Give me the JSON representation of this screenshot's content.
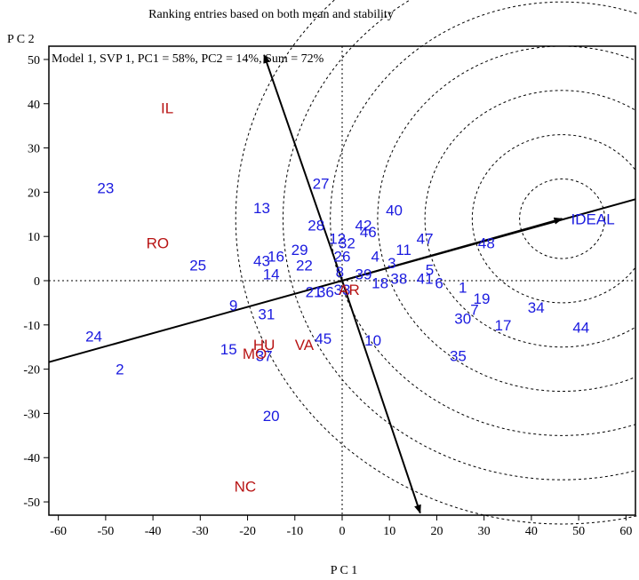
{
  "chart_data": {
    "type": "scatter",
    "title": "Ranking entries based on both mean and stability",
    "subtitle": "Model 1, SVP 1, PC1 = 58%, PC2 = 14%, Sum = 72%",
    "xlabel": "P C 1",
    "ylabel": "P C 2",
    "xlim": [
      -62,
      62
    ],
    "ylim": [
      -53,
      53
    ],
    "xticks": [
      -60,
      -50,
      -40,
      -30,
      -20,
      -10,
      0,
      10,
      20,
      30,
      40,
      50,
      60
    ],
    "yticks": [
      -50,
      -40,
      -30,
      -20,
      -10,
      0,
      10,
      20,
      30,
      40,
      50
    ],
    "grid": false,
    "colors": {
      "entry": "#1a1adf",
      "environment": "#b81414",
      "axis": "#000000",
      "ideal_arrow": "#000000"
    },
    "series": [
      {
        "name": "",
        "points": [
          {
            "label": "1",
            "x": 25.5,
            "y": -1.5
          },
          {
            "label": "2",
            "x": -47,
            "y": -20
          },
          {
            "label": "3",
            "x": 10.5,
            "y": 4
          },
          {
            "label": "4",
            "x": 7,
            "y": 5.5
          },
          {
            "label": "5",
            "x": 18.5,
            "y": 2.5
          },
          {
            "label": "6",
            "x": 20.5,
            "y": -0.5
          },
          {
            "label": "7",
            "x": 28,
            "y": -6.5
          },
          {
            "label": "8",
            "x": -0.5,
            "y": 2
          },
          {
            "label": "9",
            "x": -23,
            "y": -5.5
          },
          {
            "label": "10",
            "x": 6.5,
            "y": -13.5
          },
          {
            "label": "11",
            "x": 13,
            "y": 7
          },
          {
            "label": "12",
            "x": -1,
            "y": 9.5
          },
          {
            "label": "13",
            "x": -17,
            "y": 16.5
          },
          {
            "label": "14",
            "x": -15,
            "y": 1.5
          },
          {
            "label": "15",
            "x": -24,
            "y": -15.5
          },
          {
            "label": "16",
            "x": -14,
            "y": 5.5
          },
          {
            "label": "17",
            "x": 34,
            "y": -10
          },
          {
            "label": "18",
            "x": 8,
            "y": -0.5
          },
          {
            "label": "19",
            "x": 29.5,
            "y": -4
          },
          {
            "label": "20",
            "x": -15,
            "y": -30.5
          },
          {
            "label": "21",
            "x": -6,
            "y": -2.5
          },
          {
            "label": "22",
            "x": -8,
            "y": 3.5
          },
          {
            "label": "23",
            "x": -50,
            "y": 21
          },
          {
            "label": "24",
            "x": -52.5,
            "y": -12.5
          },
          {
            "label": "25",
            "x": -30.5,
            "y": 3.5
          },
          {
            "label": "26",
            "x": 0,
            "y": 5.5
          },
          {
            "label": "27",
            "x": -4.5,
            "y": 22
          },
          {
            "label": "28",
            "x": -5.5,
            "y": 12.5
          },
          {
            "label": "29",
            "x": -9,
            "y": 7
          },
          {
            "label": "30",
            "x": 25.5,
            "y": -8.5
          },
          {
            "label": "31",
            "x": -16,
            "y": -7.5
          },
          {
            "label": "32",
            "x": 1,
            "y": 8.5
          },
          {
            "label": "33",
            "x": 0,
            "y": -2
          },
          {
            "label": "34",
            "x": 41,
            "y": -6
          },
          {
            "label": "35",
            "x": 24.5,
            "y": -17
          },
          {
            "label": "36",
            "x": -3.5,
            "y": -2.5
          },
          {
            "label": "37",
            "x": -16.5,
            "y": -17
          },
          {
            "label": "38",
            "x": 12,
            "y": 0.5
          },
          {
            "label": "39",
            "x": 4.5,
            "y": 1.5
          },
          {
            "label": "40",
            "x": 11,
            "y": 16
          },
          {
            "label": "41",
            "x": 17.5,
            "y": 0.5
          },
          {
            "label": "42",
            "x": 4.5,
            "y": 12.5
          },
          {
            "label": "43",
            "x": -17,
            "y": 4.5
          },
          {
            "label": "44",
            "x": 50.5,
            "y": -10.5
          },
          {
            "label": "45",
            "x": -4,
            "y": -13
          },
          {
            "label": "46",
            "x": 5.5,
            "y": 11
          },
          {
            "label": "47",
            "x": 17.5,
            "y": 9.5
          },
          {
            "label": "48",
            "x": 30.5,
            "y": 8.5
          },
          {
            "label": "IDEAL",
            "x": 53,
            "y": 14
          }
        ]
      },
      {
        "name": "",
        "points": [
          {
            "label": "IL",
            "x": -37,
            "y": 39
          },
          {
            "label": "RO",
            "x": -39,
            "y": 8.5
          },
          {
            "label": "AR",
            "x": 1.5,
            "y": -2
          },
          {
            "label": "HU",
            "x": -16.5,
            "y": -14.5
          },
          {
            "label": "VA",
            "x": -8,
            "y": -14.5
          },
          {
            "label": "MO",
            "x": -18.5,
            "y": -16.5
          },
          {
            "label": "NC",
            "x": -20.5,
            "y": -46.5
          }
        ]
      }
    ],
    "lines": {
      "ave_axis": {
        "from": [
          -62,
          -18.4
        ],
        "to": [
          62,
          18.4
        ]
      },
      "perpendicular_arrows": [
        {
          "from": [
            0,
            0
          ],
          "to": [
            -16.5,
            51
          ]
        },
        {
          "from": [
            0,
            0
          ],
          "to": [
            16.5,
            -52.5
          ]
        }
      ],
      "ideal_arrow": {
        "from": [
          0,
          0
        ],
        "to": [
          46.5,
          14
        ]
      },
      "reference_lines": {
        "x": 0,
        "y": 0
      },
      "concentric_circles": {
        "center": [
          46.5,
          14
        ],
        "radii": [
          9,
          19,
          29,
          39,
          49,
          59,
          69
        ]
      }
    }
  }
}
